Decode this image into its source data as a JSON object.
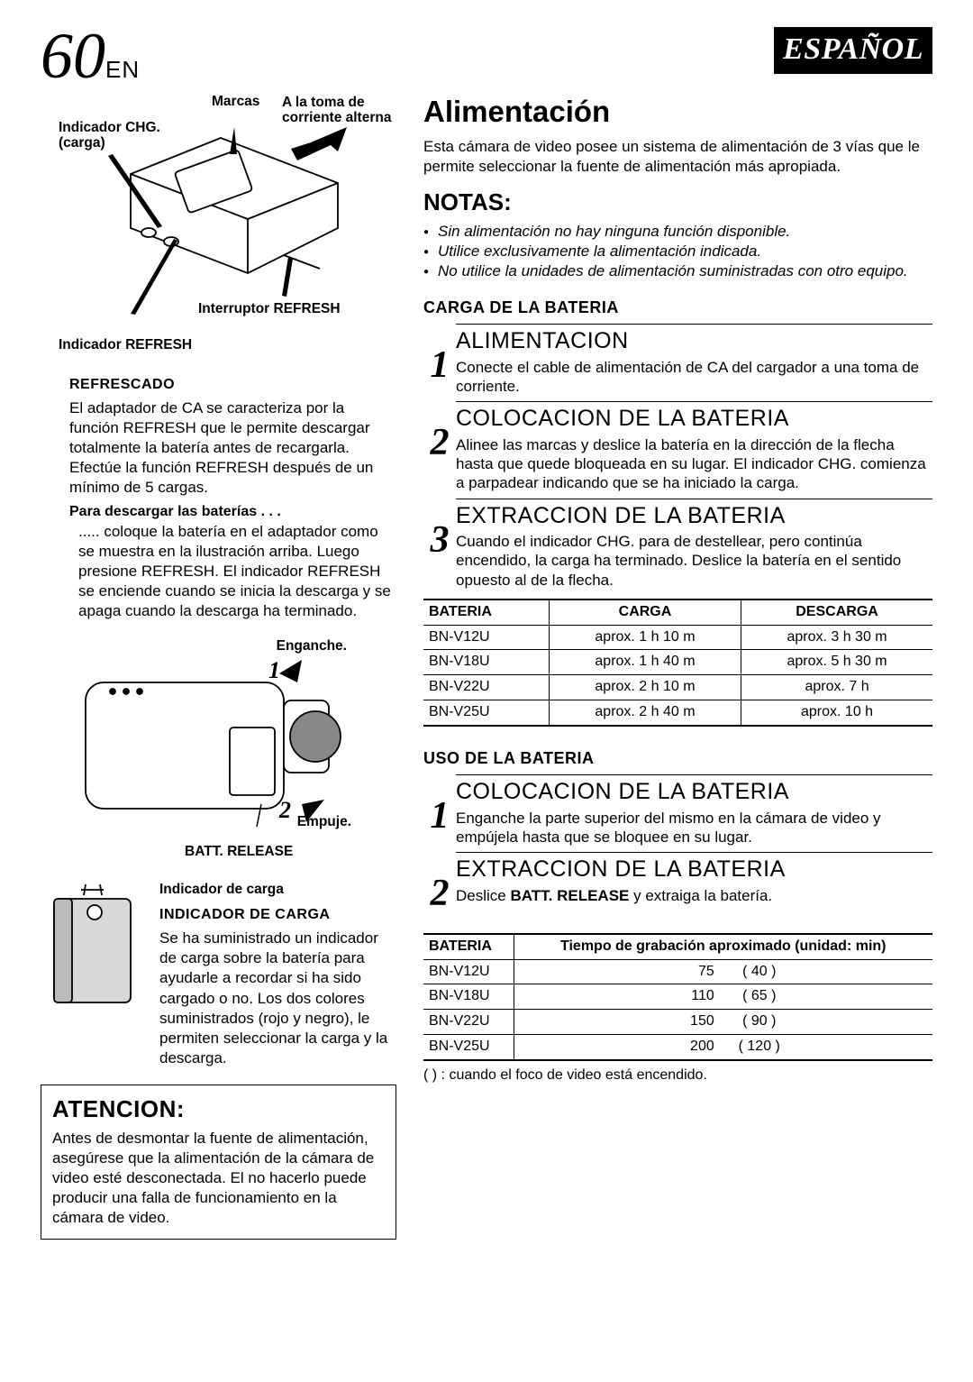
{
  "header": {
    "page": "60",
    "suffix": "EN",
    "lang": "ESPAÑOL"
  },
  "adapter_diagram": {
    "labels": {
      "marcas": "Marcas",
      "a_la_toma": "A la toma de corriente alterna",
      "indicador_chg": "Indicador CHG. (carga)",
      "interruptor_refresh": "Interruptor REFRESH",
      "indicador_refresh": "Indicador REFRESH"
    }
  },
  "refrescado": {
    "title": "REFRESCADO",
    "body": "El adaptador de CA se caracteriza por la función REFRESH que le permite descargar totalmente la batería antes de recargarla. Efectúe la función REFRESH después de un mínimo de 5 cargas.",
    "sub": "Para descargar las baterías . . .",
    "sub_body": "..... coloque la batería en el adaptador como se muestra en la ilustración arriba. Luego presione REFRESH. El indicador REFRESH se enciende cuando se inicia la descarga y se apaga cuando la descarga ha terminado."
  },
  "cam_diagram": {
    "enganche": "Enganche.",
    "empuje": "Empuje.",
    "batt_release": "BATT. RELEASE",
    "num1": "1",
    "num2": "2"
  },
  "batt_diagram": {
    "indicador": "Indicador de carga",
    "title": "INDICADOR DE CARGA",
    "body": "Se ha suministrado un indicador de carga sobre la batería para ayudarle a recordar si ha sido cargado o no. Los dos colores suministrados (rojo y negro), le permiten seleccionar la carga y la descarga."
  },
  "atencion": {
    "title": "ATENCION:",
    "body": "Antes de desmontar la fuente de alimentación, asegúrese que la alimentación de la cámara de video esté desconectada. El no hacerlo puede producir una falla de funcionamiento en la cámara de video."
  },
  "alimentacion": {
    "title": "Alimentación",
    "intro": "Esta cámara de video posee un sistema de alimentación de 3 vías que le permite seleccionar la fuente de alimentación más apropiada."
  },
  "notas": {
    "title": "NOTAS:",
    "items": [
      "Sin alimentación no hay ninguna función disponible.",
      "Utilice exclusivamente la alimentación indicada.",
      "No utilice la unidades de alimentación suministradas con otro equipo."
    ]
  },
  "carga_section": {
    "heading": "CARGA DE LA BATERIA",
    "steps": [
      {
        "n": "1",
        "title": "ALIMENTACION",
        "body": "Conecte el cable de alimentación de CA del cargador a una toma de corriente."
      },
      {
        "n": "2",
        "title": "COLOCACION DE LA BATERIA",
        "body": "Alinee las marcas y deslice la batería en la dirección de la flecha hasta que quede bloqueada en su lugar. El indicador CHG. comienza a parpadear indicando que se ha iniciado la carga."
      },
      {
        "n": "3",
        "title": "EXTRACCION DE LA BATERIA",
        "body": "Cuando el indicador CHG. para de destellear, pero continúa encendido, la carga ha terminado. Deslice la batería en el sentido opuesto al de la flecha."
      }
    ]
  },
  "charge_table": {
    "headers": [
      "BATERIA",
      "CARGA",
      "DESCARGA"
    ],
    "rows": [
      [
        "BN-V12U",
        "aprox. 1 h 10 m",
        "aprox. 3 h 30 m"
      ],
      [
        "BN-V18U",
        "aprox. 1 h 40 m",
        "aprox. 5 h 30 m"
      ],
      [
        "BN-V22U",
        "aprox. 2 h 10 m",
        "aprox. 7 h"
      ],
      [
        "BN-V25U",
        "aprox. 2 h 40 m",
        "aprox. 10 h"
      ]
    ]
  },
  "uso_section": {
    "heading": "USO DE LA BATERIA",
    "steps": [
      {
        "n": "1",
        "title": "COLOCACION DE LA BATERIA",
        "body": "Enganche la parte superior del mismo en la cámara de video y empújela hasta que se bloquee en su lugar."
      },
      {
        "n": "2",
        "title": "EXTRACCION DE LA BATERIA",
        "body_html": "Deslice <b>BATT. RELEASE</b> y extraiga la batería."
      }
    ]
  },
  "time_table": {
    "headers": [
      "BATERIA",
      "Tiempo de grabación aproximado (unidad: min)"
    ],
    "rows": [
      [
        "BN-V12U",
        "75",
        "( 40 )"
      ],
      [
        "BN-V18U",
        "110",
        "( 65 )"
      ],
      [
        "BN-V22U",
        "150",
        "( 90 )"
      ],
      [
        "BN-V25U",
        "200",
        "( 120 )"
      ]
    ],
    "footnote": "(   ) : cuando el foco de video está encendido."
  }
}
